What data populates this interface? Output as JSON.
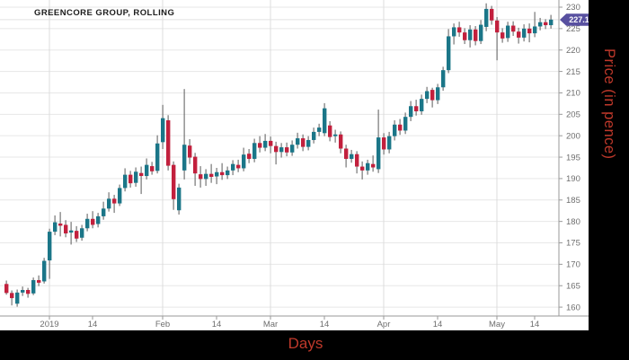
{
  "title": "GREENCORE GROUP, ROLLING",
  "axes": {
    "x_title": "Days",
    "y_title": "Price (in pence)",
    "y_ticks": [
      160,
      165,
      170,
      175,
      180,
      185,
      190,
      195,
      200,
      205,
      210,
      215,
      220,
      225,
      230
    ],
    "x_ticks": [
      {
        "label": "2019",
        "idx": 8
      },
      {
        "label": "14",
        "idx": 16
      },
      {
        "label": "Feb",
        "idx": 29
      },
      {
        "label": "14",
        "idx": 39
      },
      {
        "label": "Mar",
        "idx": 49
      },
      {
        "label": "14",
        "idx": 59
      },
      {
        "label": "Apr",
        "idx": 70
      },
      {
        "label": "14",
        "idx": 80
      },
      {
        "label": "May",
        "idx": 91
      },
      {
        "label": "14",
        "idx": 98
      }
    ],
    "month_gridline_indices": [
      8,
      29,
      49,
      70,
      91
    ]
  },
  "last_price": {
    "value": "227.1",
    "badge_color": "#5850a0"
  },
  "colors": {
    "up": "#1b7688",
    "down": "#c2203d",
    "wick": "#5a5a5a",
    "grid": "#e7e7e7",
    "month_grid": "#dcdcdc",
    "axis_line": "#9a9a9a",
    "tick_label": "#6e6e6e",
    "axis_title": "#c0392b",
    "panel_bg": "#000000",
    "last_price_line": "#e2e2e2"
  },
  "chart_data": {
    "type": "candlestick",
    "title": "GREENCORE GROUP, ROLLING",
    "xlabel": "Days",
    "ylabel": "Price (in pence)",
    "ylim": [
      160,
      230
    ],
    "x_tick_labels": [
      "2019",
      "14",
      "Feb",
      "14",
      "Mar",
      "14",
      "Apr",
      "14",
      "May",
      "14"
    ],
    "last_close": 227.1,
    "candles_ohlc": [
      [
        165.4,
        166.2,
        162.9,
        163.3
      ],
      [
        163.3,
        163.9,
        160.4,
        162.1
      ],
      [
        160.8,
        164.1,
        160.1,
        163.4
      ],
      [
        163.4,
        164.8,
        162.6,
        164.0
      ],
      [
        164.0,
        164.5,
        162.2,
        163.1
      ],
      [
        163.2,
        166.9,
        162.8,
        166.3
      ],
      [
        166.3,
        167.4,
        164.9,
        165.7
      ],
      [
        166.0,
        171.5,
        165.5,
        170.8
      ],
      [
        170.9,
        178.3,
        166.6,
        177.6
      ],
      [
        177.6,
        181.4,
        176.8,
        179.8
      ],
      [
        179.5,
        182.2,
        176.5,
        179.0
      ],
      [
        179.2,
        180.3,
        176.3,
        177.2
      ],
      [
        177.4,
        179.9,
        174.6,
        177.9
      ],
      [
        177.8,
        178.9,
        175.2,
        176.0
      ],
      [
        176.2,
        179.2,
        175.5,
        178.4
      ],
      [
        178.4,
        181.8,
        177.7,
        180.6
      ],
      [
        180.6,
        182.4,
        178.4,
        179.2
      ],
      [
        179.4,
        182.0,
        178.6,
        181.2
      ],
      [
        181.2,
        184.6,
        180.4,
        183.0
      ],
      [
        183.0,
        186.8,
        182.3,
        185.3
      ],
      [
        185.3,
        186.2,
        182.0,
        184.2
      ],
      [
        184.2,
        188.6,
        183.6,
        187.8
      ],
      [
        187.8,
        192.4,
        187.0,
        190.9
      ],
      [
        190.9,
        191.8,
        187.9,
        188.9
      ],
      [
        189.0,
        192.6,
        188.1,
        191.6
      ],
      [
        191.3,
        192.8,
        186.4,
        190.6
      ],
      [
        190.6,
        194.7,
        189.8,
        193.2
      ],
      [
        192.9,
        193.9,
        190.9,
        191.7
      ],
      [
        191.8,
        200.1,
        191.2,
        198.2
      ],
      [
        198.5,
        207.2,
        196.9,
        204.1
      ],
      [
        203.6,
        204.8,
        191.9,
        193.0
      ],
      [
        193.2,
        194.0,
        182.7,
        185.2
      ],
      [
        182.6,
        188.8,
        181.6,
        187.9
      ],
      [
        191.9,
        210.9,
        189.8,
        197.9
      ],
      [
        197.7,
        199.2,
        193.4,
        194.9
      ],
      [
        195.1,
        196.0,
        188.3,
        191.2
      ],
      [
        191.0,
        192.9,
        187.9,
        189.9
      ],
      [
        189.9,
        192.2,
        188.3,
        191.1
      ],
      [
        191.1,
        193.4,
        189.0,
        190.4
      ],
      [
        190.5,
        192.5,
        188.7,
        191.5
      ],
      [
        191.5,
        193.6,
        189.7,
        190.8
      ],
      [
        190.8,
        192.8,
        189.9,
        191.9
      ],
      [
        191.9,
        194.3,
        190.8,
        193.4
      ],
      [
        193.2,
        194.4,
        191.5,
        192.4
      ],
      [
        192.4,
        197.2,
        191.7,
        195.6
      ],
      [
        195.8,
        196.9,
        193.6,
        194.6
      ],
      [
        194.6,
        199.3,
        193.8,
        198.3
      ],
      [
        198.3,
        199.9,
        196.1,
        197.2
      ],
      [
        197.2,
        200.4,
        196.4,
        198.8
      ],
      [
        198.8,
        199.8,
        195.9,
        197.6
      ],
      [
        197.6,
        198.6,
        193.3,
        196.2
      ],
      [
        196.2,
        198.3,
        194.9,
        197.3
      ],
      [
        197.3,
        198.4,
        195.2,
        196.1
      ],
      [
        196.1,
        198.9,
        195.3,
        197.9
      ],
      [
        197.9,
        200.7,
        197.0,
        199.4
      ],
      [
        199.4,
        200.3,
        196.4,
        197.4
      ],
      [
        197.4,
        199.9,
        196.6,
        199.0
      ],
      [
        199.0,
        201.9,
        198.2,
        200.9
      ],
      [
        200.9,
        202.8,
        199.9,
        201.9
      ],
      [
        200.6,
        207.6,
        199.9,
        206.4
      ],
      [
        202.4,
        203.4,
        198.7,
        199.7
      ],
      [
        199.9,
        201.4,
        198.4,
        200.3
      ],
      [
        200.3,
        201.0,
        195.9,
        197.0
      ],
      [
        197.0,
        197.9,
        192.6,
        194.6
      ],
      [
        194.6,
        196.7,
        193.7,
        195.7
      ],
      [
        195.7,
        196.4,
        191.2,
        192.8
      ],
      [
        192.8,
        194.0,
        189.8,
        191.9
      ],
      [
        191.9,
        194.4,
        190.9,
        193.6
      ],
      [
        193.4,
        195.4,
        191.6,
        192.6
      ],
      [
        192.2,
        206.1,
        191.3,
        199.6
      ],
      [
        199.6,
        200.6,
        195.6,
        196.8
      ],
      [
        196.8,
        200.9,
        195.9,
        199.9
      ],
      [
        199.9,
        203.6,
        198.9,
        202.6
      ],
      [
        202.6,
        203.9,
        200.2,
        201.2
      ],
      [
        201.2,
        205.4,
        200.4,
        204.4
      ],
      [
        204.4,
        208.1,
        203.4,
        206.9
      ],
      [
        206.9,
        208.4,
        204.7,
        205.7
      ],
      [
        205.7,
        209.6,
        204.9,
        208.6
      ],
      [
        208.6,
        211.4,
        207.6,
        210.4
      ],
      [
        210.7,
        211.2,
        206.6,
        208.3
      ],
      [
        208.3,
        212.1,
        207.4,
        211.3
      ],
      [
        211.3,
        216.1,
        210.5,
        215.3
      ],
      [
        215.3,
        224.9,
        214.6,
        223.2
      ],
      [
        223.2,
        226.2,
        221.3,
        225.3
      ],
      [
        225.3,
        226.6,
        223.1,
        224.1
      ],
      [
        224.1,
        225.1,
        221.4,
        222.3
      ],
      [
        222.3,
        225.8,
        220.6,
        224.8
      ],
      [
        224.8,
        225.6,
        221.1,
        222.1
      ],
      [
        222.1,
        227.0,
        221.4,
        225.9
      ],
      [
        225.4,
        230.9,
        224.4,
        229.6
      ],
      [
        229.6,
        230.3,
        225.9,
        226.9
      ],
      [
        226.9,
        227.7,
        217.6,
        224.1
      ],
      [
        224.1,
        225.1,
        221.7,
        222.7
      ],
      [
        222.8,
        226.6,
        221.9,
        225.7
      ],
      [
        225.7,
        226.7,
        223.3,
        224.3
      ],
      [
        224.3,
        225.2,
        221.5,
        222.9
      ],
      [
        222.9,
        226.0,
        222.0,
        225.0
      ],
      [
        225.0,
        226.2,
        221.8,
        223.9
      ],
      [
        223.9,
        228.9,
        223.0,
        225.5
      ],
      [
        225.5,
        227.5,
        224.6,
        226.5
      ],
      [
        226.5,
        227.2,
        224.9,
        225.8
      ],
      [
        225.8,
        228.2,
        225.0,
        227.1
      ]
    ]
  }
}
